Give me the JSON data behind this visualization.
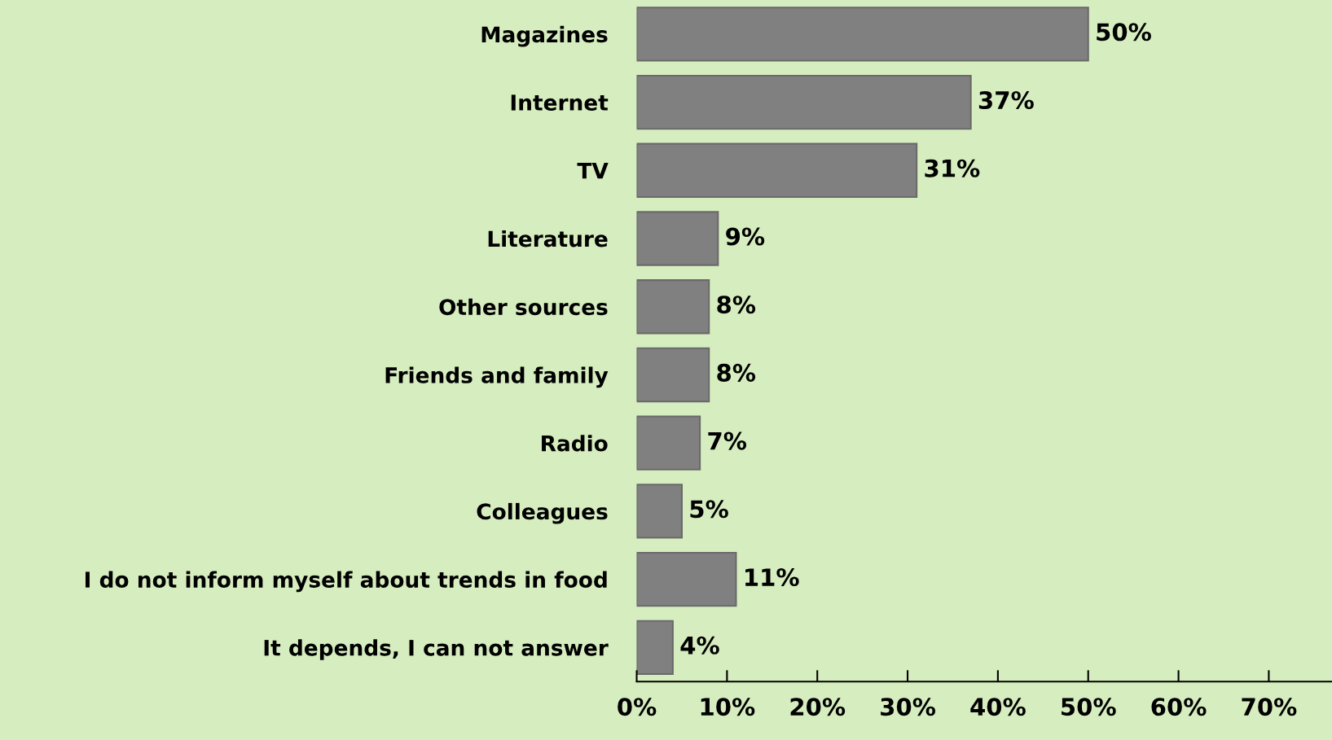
{
  "chart_data": {
    "type": "bar",
    "orientation": "horizontal",
    "categories": [
      "Magazines",
      "Internet",
      "TV",
      "Literature",
      "Other sources",
      "Friends and family",
      "Radio",
      "Colleagues",
      "I do not inform myself about trends in food",
      "It depends, I can not answer"
    ],
    "values": [
      50,
      37,
      31,
      9,
      8,
      8,
      7,
      5,
      11,
      4
    ],
    "value_labels": [
      "50%",
      "37%",
      "31%",
      "9%",
      "8%",
      "8%",
      "7%",
      "5%",
      "11%",
      "4%"
    ],
    "color": "#808080",
    "xlim": [
      0,
      77
    ],
    "xticks": [
      {
        "value": 0,
        "label": "0%"
      },
      {
        "value": 10,
        "label": "10%"
      },
      {
        "value": 20,
        "label": "20%"
      },
      {
        "value": 30,
        "label": "30%"
      },
      {
        "value": 40,
        "label": "40%"
      },
      {
        "value": 50,
        "label": "50%"
      },
      {
        "value": 60,
        "label": "60%"
      },
      {
        "value": 70,
        "label": "70%"
      }
    ],
    "grid": false,
    "legend": false
  }
}
